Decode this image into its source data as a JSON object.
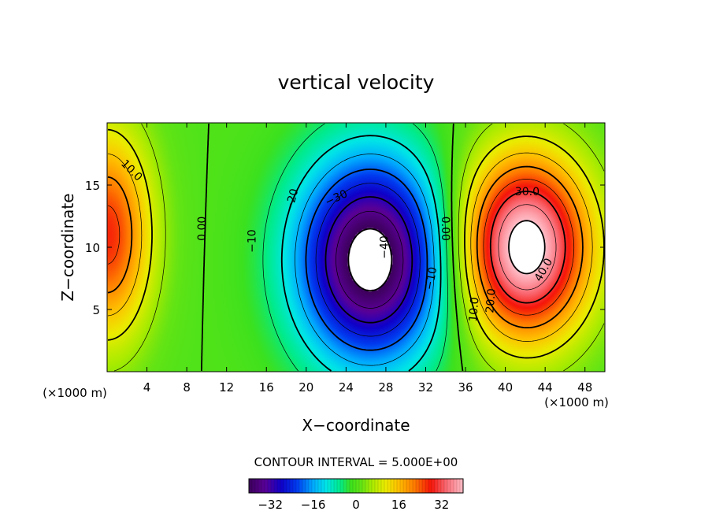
{
  "chart_data": {
    "type": "heatmap",
    "title": "vertical velocity",
    "xlabel": "X−coordinate",
    "ylabel": "Z−coordinate",
    "x_unit_left": "(×1000 m)",
    "x_unit_right": "(×1000 m)",
    "xlim": [
      0,
      50
    ],
    "ylim": [
      0,
      20
    ],
    "x_ticks": [
      4,
      8,
      12,
      16,
      20,
      24,
      28,
      32,
      36,
      40,
      44,
      48
    ],
    "x_tick_labels": [
      "4",
      "8",
      "12",
      "16",
      "20",
      "24",
      "28",
      "32",
      "36",
      "40",
      "44",
      "48"
    ],
    "y_ticks": [
      5,
      10,
      15
    ],
    "y_tick_labels": [
      "5",
      "10",
      "15"
    ],
    "contour_interval_text": "CONTOUR INTERVAL = 5.000E+00",
    "contour_interval": 5,
    "contour_labels": [
      "10.0",
      "0.00",
      "−10",
      "−20",
      "−30",
      "−40",
      "0.00",
      "−10",
      "30.0",
      "40.0",
      "20.0",
      "10.0"
    ],
    "cells": [
      {
        "x": 0,
        "z": 11,
        "peak": 27,
        "sx": 3.2,
        "sz": 6
      },
      {
        "x": 26.5,
        "z": 9,
        "peak": -44,
        "sx": 5.2,
        "sz": 5.8
      },
      {
        "x": 42,
        "z": 10,
        "peak": 44,
        "sx": 4.6,
        "sz": 5.2
      }
    ],
    "colorbar": {
      "min": -40,
      "max": 40,
      "tick_values": [
        -32,
        -16,
        0,
        16,
        32
      ],
      "tick_labels": [
        "−32",
        "−16",
        "0",
        "16",
        "32"
      ]
    }
  }
}
